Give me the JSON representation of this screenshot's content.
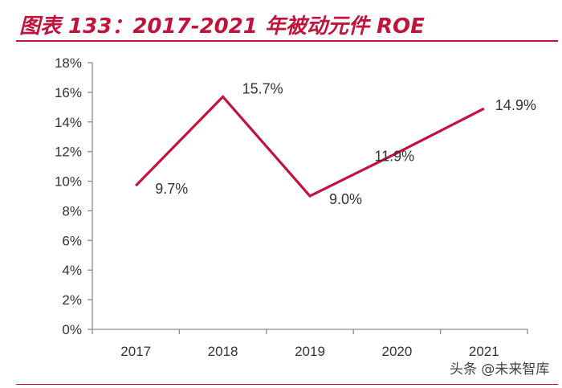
{
  "figure_title": "图表 133：2017-2021 年被动元件 ROE",
  "watermark": "头条 @未来智库",
  "colors": {
    "accent": "#c0143c",
    "axis": "#8c8c8c",
    "text": "#333333"
  },
  "chart_data": {
    "type": "line",
    "title": "2017-2021 年被动元件 ROE",
    "xlabel": "",
    "ylabel": "",
    "categories": [
      "2017",
      "2018",
      "2019",
      "2020",
      "2021"
    ],
    "series": [
      {
        "name": "ROE",
        "values": [
          9.7,
          15.7,
          9.0,
          11.9,
          14.9
        ],
        "labels": [
          "9.7%",
          "15.7%",
          "9.0%",
          "11.9%",
          "14.9%"
        ]
      }
    ],
    "ylim": [
      0,
      18
    ],
    "yticks": [
      0,
      2,
      4,
      6,
      8,
      10,
      12,
      14,
      16,
      18
    ],
    "ytick_labels": [
      "0%",
      "2%",
      "4%",
      "6%",
      "8%",
      "10%",
      "12%",
      "14%",
      "16%",
      "18%"
    ],
    "grid": false,
    "legend": "none"
  }
}
